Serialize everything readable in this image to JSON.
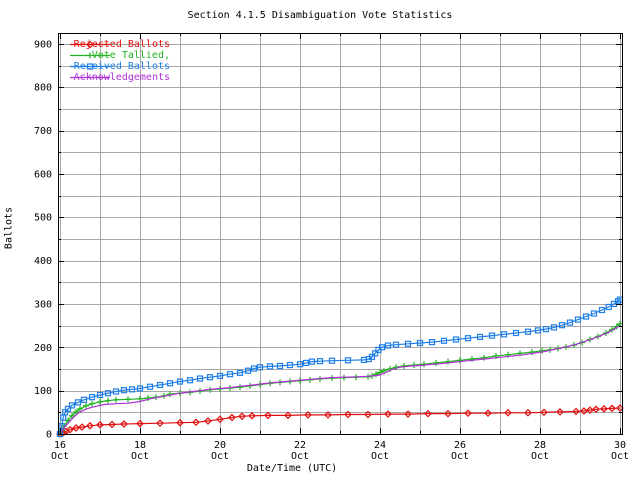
{
  "chart_data": {
    "type": "line",
    "title": "Section 4.1.5 Disambiguation Vote Statistics",
    "xlabel": "Date/Time (UTC)",
    "ylabel": "Ballots",
    "grid": true,
    "legend_position": "top-left",
    "x_axis": {
      "range": [
        15.95,
        30.05
      ],
      "major_ticks": [
        16,
        18,
        20,
        22,
        24,
        26,
        28,
        30
      ],
      "minor_ticks": [
        17,
        19,
        21,
        23,
        25,
        27,
        29
      ],
      "month_label": "Oct",
      "grid_step_days": 1
    },
    "y_axis": {
      "range": [
        0,
        925
      ],
      "major_ticks": [
        0,
        100,
        200,
        300,
        400,
        500,
        600,
        700,
        800,
        900
      ],
      "minor_step": 50,
      "grid_step": 50
    },
    "series": [
      {
        "name": "Rejected Ballots",
        "color": "#e01010",
        "marker": "diamond",
        "points": [
          [
            16.0,
            0
          ],
          [
            16.08,
            3
          ],
          [
            16.15,
            6
          ],
          [
            16.25,
            10
          ],
          [
            16.4,
            14
          ],
          [
            16.55,
            16
          ],
          [
            16.75,
            19
          ],
          [
            17.0,
            21
          ],
          [
            17.3,
            22
          ],
          [
            17.6,
            23
          ],
          [
            18.0,
            24
          ],
          [
            18.5,
            25
          ],
          [
            19.0,
            26
          ],
          [
            19.4,
            27
          ],
          [
            19.7,
            30
          ],
          [
            20.0,
            34
          ],
          [
            20.3,
            38
          ],
          [
            20.55,
            41
          ],
          [
            20.8,
            42
          ],
          [
            21.2,
            43
          ],
          [
            21.7,
            43
          ],
          [
            22.2,
            44
          ],
          [
            22.7,
            44
          ],
          [
            23.2,
            45
          ],
          [
            23.7,
            45
          ],
          [
            24.2,
            46
          ],
          [
            24.7,
            46
          ],
          [
            25.2,
            47
          ],
          [
            25.7,
            47
          ],
          [
            26.2,
            48
          ],
          [
            26.7,
            48
          ],
          [
            27.2,
            49
          ],
          [
            27.7,
            49
          ],
          [
            28.1,
            50
          ],
          [
            28.5,
            51
          ],
          [
            28.9,
            52
          ],
          [
            29.1,
            53
          ],
          [
            29.25,
            55
          ],
          [
            29.4,
            57
          ],
          [
            29.6,
            58
          ],
          [
            29.8,
            59
          ],
          [
            30.0,
            60
          ]
        ]
      },
      {
        "name": "Vote Tallied,",
        "color": "#22b322",
        "marker": "plus",
        "points": [
          [
            16.0,
            0
          ],
          [
            16.05,
            9
          ],
          [
            16.1,
            19
          ],
          [
            16.2,
            31
          ],
          [
            16.3,
            42
          ],
          [
            16.4,
            51
          ],
          [
            16.5,
            58
          ],
          [
            16.65,
            65
          ],
          [
            16.8,
            70
          ],
          [
            17.0,
            74
          ],
          [
            17.2,
            77
          ],
          [
            17.4,
            79
          ],
          [
            17.7,
            80
          ],
          [
            18.0,
            81
          ],
          [
            18.2,
            83
          ],
          [
            18.4,
            85
          ],
          [
            18.6,
            88
          ],
          [
            18.75,
            92
          ],
          [
            19.0,
            94
          ],
          [
            19.25,
            96
          ],
          [
            19.5,
            99
          ],
          [
            19.75,
            102
          ],
          [
            20.0,
            104
          ],
          [
            20.25,
            106
          ],
          [
            20.5,
            108
          ],
          [
            20.75,
            111
          ],
          [
            21.0,
            114
          ],
          [
            21.25,
            117
          ],
          [
            21.5,
            119
          ],
          [
            21.75,
            121
          ],
          [
            22.0,
            123
          ],
          [
            22.25,
            125
          ],
          [
            22.5,
            127
          ],
          [
            22.8,
            129
          ],
          [
            23.1,
            130
          ],
          [
            23.4,
            131
          ],
          [
            23.7,
            132
          ],
          [
            23.8,
            134
          ],
          [
            23.9,
            138
          ],
          [
            24.0,
            142
          ],
          [
            24.1,
            146
          ],
          [
            24.25,
            150
          ],
          [
            24.4,
            154
          ],
          [
            24.6,
            157
          ],
          [
            24.85,
            159
          ],
          [
            25.1,
            161
          ],
          [
            25.4,
            164
          ],
          [
            25.7,
            167
          ],
          [
            26.0,
            170
          ],
          [
            26.3,
            173
          ],
          [
            26.6,
            176
          ],
          [
            26.9,
            180
          ],
          [
            27.2,
            183
          ],
          [
            27.5,
            186
          ],
          [
            27.8,
            189
          ],
          [
            28.05,
            192
          ],
          [
            28.25,
            194
          ],
          [
            28.45,
            197
          ],
          [
            28.65,
            201
          ],
          [
            28.85,
            205
          ],
          [
            29.05,
            211
          ],
          [
            29.25,
            218
          ],
          [
            29.45,
            225
          ],
          [
            29.65,
            233
          ],
          [
            29.8,
            241
          ],
          [
            29.92,
            248
          ],
          [
            30.0,
            254
          ]
        ]
      },
      {
        "name": "Received Ballots",
        "color": "#1f7fe6",
        "marker": "square",
        "points": [
          [
            16.0,
            0
          ],
          [
            16.04,
            18
          ],
          [
            16.08,
            38
          ],
          [
            16.13,
            50
          ],
          [
            16.2,
            58
          ],
          [
            16.3,
            66
          ],
          [
            16.45,
            73
          ],
          [
            16.6,
            79
          ],
          [
            16.8,
            85
          ],
          [
            17.0,
            90
          ],
          [
            17.2,
            94
          ],
          [
            17.4,
            98
          ],
          [
            17.6,
            101
          ],
          [
            17.8,
            103
          ],
          [
            18.0,
            105
          ],
          [
            18.25,
            109
          ],
          [
            18.5,
            113
          ],
          [
            18.75,
            117
          ],
          [
            19.0,
            121
          ],
          [
            19.25,
            124
          ],
          [
            19.5,
            128
          ],
          [
            19.75,
            131
          ],
          [
            20.0,
            134
          ],
          [
            20.25,
            138
          ],
          [
            20.5,
            141
          ],
          [
            20.7,
            146
          ],
          [
            20.85,
            151
          ],
          [
            21.0,
            154
          ],
          [
            21.25,
            156
          ],
          [
            21.5,
            157
          ],
          [
            21.75,
            159
          ],
          [
            22.0,
            161
          ],
          [
            22.15,
            164
          ],
          [
            22.3,
            167
          ],
          [
            22.5,
            168
          ],
          [
            22.8,
            169
          ],
          [
            23.2,
            170
          ],
          [
            23.6,
            171
          ],
          [
            23.72,
            173
          ],
          [
            23.8,
            178
          ],
          [
            23.88,
            186
          ],
          [
            23.96,
            194
          ],
          [
            24.05,
            200
          ],
          [
            24.2,
            204
          ],
          [
            24.4,
            206
          ],
          [
            24.7,
            208
          ],
          [
            25.0,
            210
          ],
          [
            25.3,
            212
          ],
          [
            25.6,
            215
          ],
          [
            25.9,
            218
          ],
          [
            26.2,
            221
          ],
          [
            26.5,
            224
          ],
          [
            26.8,
            227
          ],
          [
            27.1,
            230
          ],
          [
            27.4,
            233
          ],
          [
            27.7,
            236
          ],
          [
            27.95,
            239
          ],
          [
            28.15,
            242
          ],
          [
            28.35,
            246
          ],
          [
            28.55,
            251
          ],
          [
            28.75,
            257
          ],
          [
            28.95,
            264
          ],
          [
            29.15,
            271
          ],
          [
            29.35,
            278
          ],
          [
            29.55,
            286
          ],
          [
            29.72,
            293
          ],
          [
            29.85,
            300
          ],
          [
            29.95,
            306
          ],
          [
            30.0,
            310
          ]
        ]
      },
      {
        "name": "Acknowledgements",
        "color": "#b030d8",
        "marker": "none",
        "points": [
          [
            16.0,
            0
          ],
          [
            16.05,
            7
          ],
          [
            16.1,
            14
          ],
          [
            16.2,
            25
          ],
          [
            16.3,
            35
          ],
          [
            16.4,
            44
          ],
          [
            16.5,
            51
          ],
          [
            16.7,
            59
          ],
          [
            16.9,
            64
          ],
          [
            17.1,
            68
          ],
          [
            17.4,
            70
          ],
          [
            17.7,
            71
          ],
          [
            18.0,
            75
          ],
          [
            18.2,
            80
          ],
          [
            18.4,
            84
          ],
          [
            18.6,
            87
          ],
          [
            18.8,
            91
          ],
          [
            19.0,
            94
          ],
          [
            19.25,
            97
          ],
          [
            19.5,
            100
          ],
          [
            19.75,
            103
          ],
          [
            20.0,
            105
          ],
          [
            20.25,
            107
          ],
          [
            20.5,
            110
          ],
          [
            20.75,
            112
          ],
          [
            21.0,
            115
          ],
          [
            21.25,
            118
          ],
          [
            21.5,
            120
          ],
          [
            21.75,
            122
          ],
          [
            22.0,
            124
          ],
          [
            22.25,
            126
          ],
          [
            22.5,
            128
          ],
          [
            22.8,
            130
          ],
          [
            23.1,
            131
          ],
          [
            23.4,
            132
          ],
          [
            23.7,
            133
          ],
          [
            24.0,
            136
          ],
          [
            24.15,
            142
          ],
          [
            24.3,
            149
          ],
          [
            24.5,
            154
          ],
          [
            24.8,
            157
          ],
          [
            25.0,
            158
          ],
          [
            25.2,
            160
          ],
          [
            25.5,
            162
          ],
          [
            25.8,
            165
          ],
          [
            26.1,
            168
          ],
          [
            26.4,
            171
          ],
          [
            26.7,
            174
          ],
          [
            27.0,
            177
          ],
          [
            27.3,
            180
          ],
          [
            27.6,
            183
          ],
          [
            27.9,
            187
          ],
          [
            28.1,
            190
          ],
          [
            28.3,
            194
          ],
          [
            28.5,
            198
          ],
          [
            28.7,
            202
          ],
          [
            28.9,
            207
          ],
          [
            29.1,
            213
          ],
          [
            29.3,
            219
          ],
          [
            29.5,
            226
          ],
          [
            29.7,
            234
          ],
          [
            29.85,
            242
          ],
          [
            30.0,
            250
          ]
        ]
      }
    ]
  },
  "colors": {
    "background": "#ffffff",
    "grid": "#a8a8a8",
    "border": "#000000",
    "text": "#000000"
  }
}
